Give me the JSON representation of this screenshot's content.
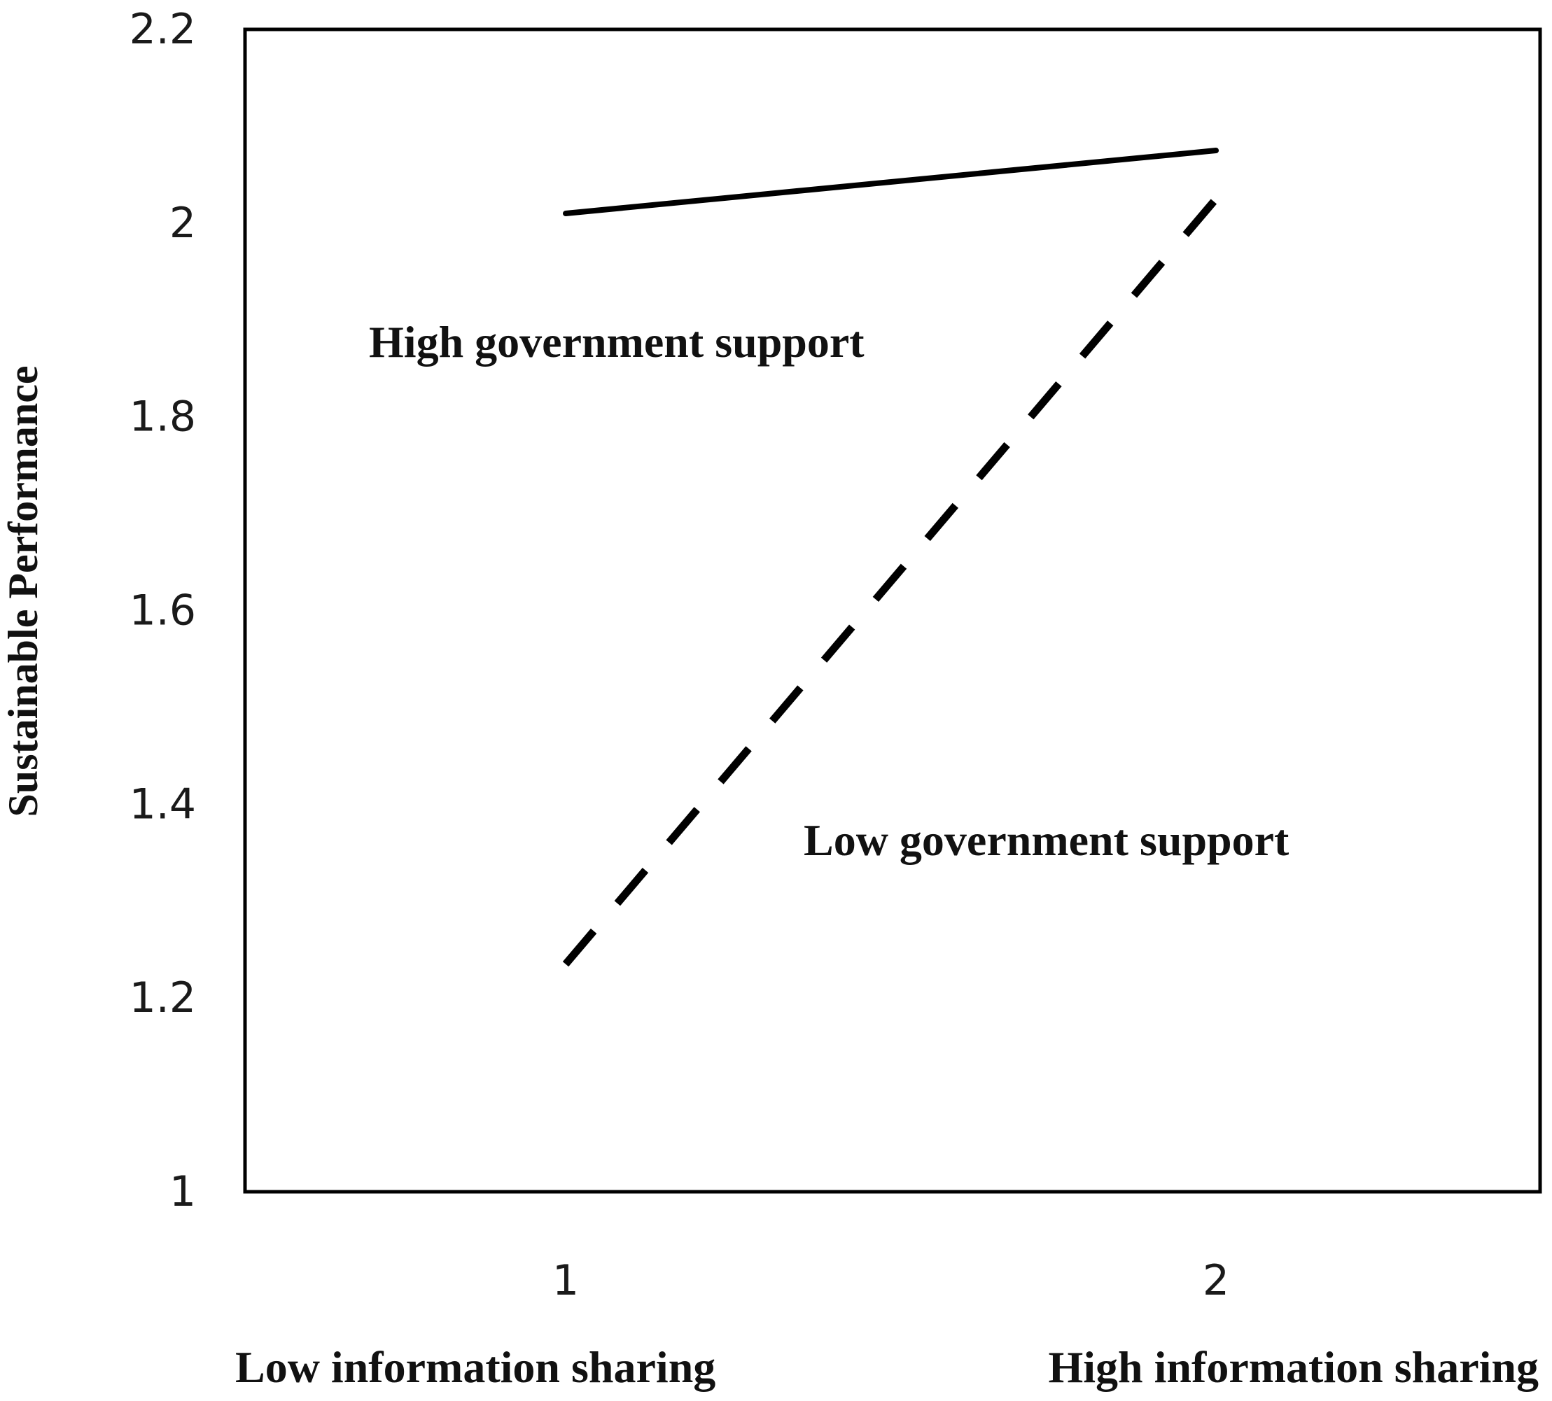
{
  "chart_data": {
    "type": "line",
    "title": "",
    "x": [
      1,
      2
    ],
    "xlabel": "",
    "x_tick_labels": [
      "1",
      "2"
    ],
    "x_category_labels": [
      "Low information sharing",
      "High information sharing"
    ],
    "ylabel": "Sustainable Performance",
    "ylim": [
      1,
      2.2
    ],
    "y_ticks": [
      1,
      1.2,
      1.4,
      1.6,
      1.8,
      2,
      2.2
    ],
    "y_tick_labels": [
      "1",
      "1.2",
      "1.4",
      "1.6",
      "1.8",
      "2",
      "2.2"
    ],
    "grid": false,
    "legend": "none",
    "series": [
      {
        "values": [
          2.01,
          2.075
        ],
        "line_style": "solid",
        "color": "#000000",
        "annotation": "High government support"
      },
      {
        "values": [
          1.235,
          2.025
        ],
        "line_style": "dashed",
        "color": "#000000",
        "annotation": "Low government support"
      }
    ]
  }
}
